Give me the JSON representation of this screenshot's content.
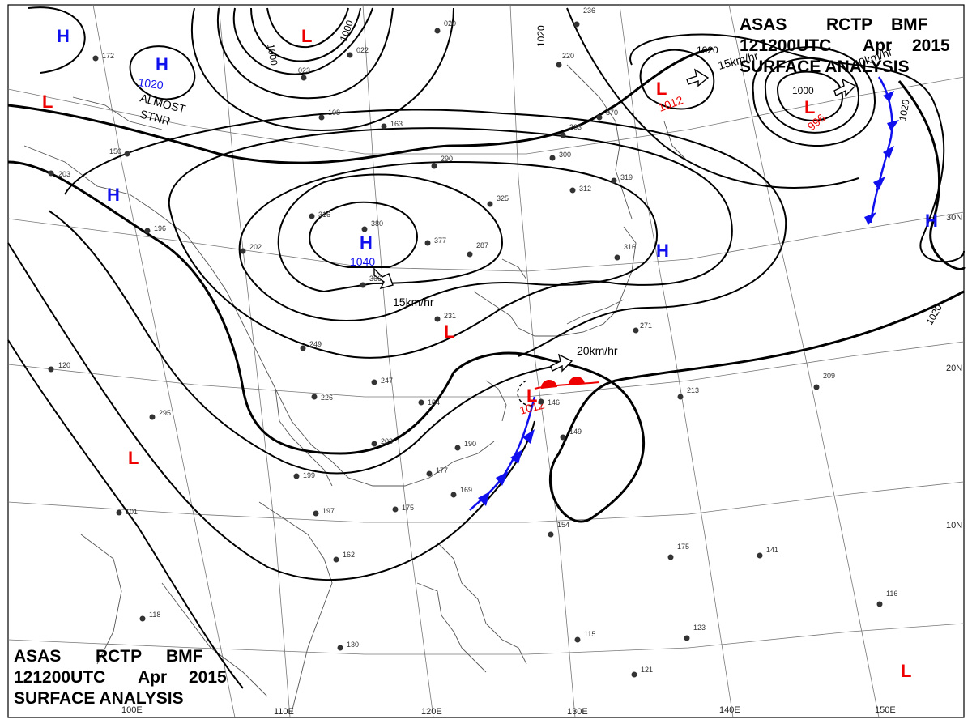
{
  "header_top": {
    "line1": [
      "ASAS",
      "RCTP",
      "BMF"
    ],
    "line2": [
      "121200UTC",
      "Apr",
      "2015"
    ],
    "line3": "SURFACE ANALYSIS"
  },
  "header_bottom": {
    "line1": [
      "ASAS",
      "RCTP",
      "BMF"
    ],
    "line2": [
      "121200UTC",
      "Apr",
      "2015"
    ],
    "line3": "SURFACE ANALYSIS"
  },
  "colors": {
    "high": "#1010ee",
    "low": "#ee0000",
    "isobar": "#000000",
    "grid": "#666666",
    "coast": "#555555",
    "front_cold": "#1010ee",
    "front_warm": "#ee0000"
  },
  "longitude_labels": [
    "100E",
    "110E",
    "120E",
    "130E",
    "140E",
    "150E"
  ],
  "latitude_labels": [
    "30N",
    "20N",
    "10N"
  ],
  "pressure_centers": [
    {
      "type": "H",
      "symbol": "H",
      "value": "1020"
    },
    {
      "type": "H",
      "symbol": "H",
      "value": "1040"
    },
    {
      "type": "L",
      "symbol": "L",
      "value": "1012"
    },
    {
      "type": "L",
      "symbol": "L",
      "value": "996"
    },
    {
      "type": "L",
      "symbol": "L",
      "value": "1012"
    },
    {
      "type": "H",
      "symbol": "H",
      "value": ""
    },
    {
      "type": "H",
      "symbol": "H",
      "value": ""
    },
    {
      "type": "H",
      "symbol": "H",
      "value": ""
    },
    {
      "type": "H",
      "symbol": "H",
      "value": ""
    },
    {
      "type": "L",
      "symbol": "L",
      "value": ""
    },
    {
      "type": "L",
      "symbol": "L",
      "value": ""
    },
    {
      "type": "L",
      "symbol": "L",
      "value": ""
    },
    {
      "type": "L",
      "symbol": "L",
      "value": ""
    },
    {
      "type": "L",
      "symbol": "L",
      "value": ""
    }
  ],
  "isobar_labels": [
    "1000",
    "1000",
    "1020",
    "1020",
    "1020",
    "1020",
    "1000"
  ],
  "annotations": {
    "almost_stnr": [
      "ALMOST",
      "STNR"
    ],
    "motion": [
      "15km/hr",
      "15km/hr",
      "20km/hr",
      "15km/hr",
      "40km/hr"
    ]
  },
  "stations": [
    "172",
    "150",
    "203",
    "196",
    "120",
    "295",
    "101",
    "118",
    "202",
    "316",
    "380",
    "366",
    "377",
    "287",
    "325",
    "290",
    "263",
    "300",
    "312",
    "319",
    "316",
    "231",
    "249",
    "226",
    "247",
    "184",
    "203",
    "199",
    "197",
    "175",
    "177",
    "190",
    "169",
    "162",
    "213",
    "209",
    "175",
    "141",
    "154",
    "130",
    "115",
    "121",
    "123",
    "116",
    "023",
    "022",
    "163",
    "108",
    "236",
    "220",
    "370",
    "146",
    "149",
    "271",
    "020"
  ]
}
